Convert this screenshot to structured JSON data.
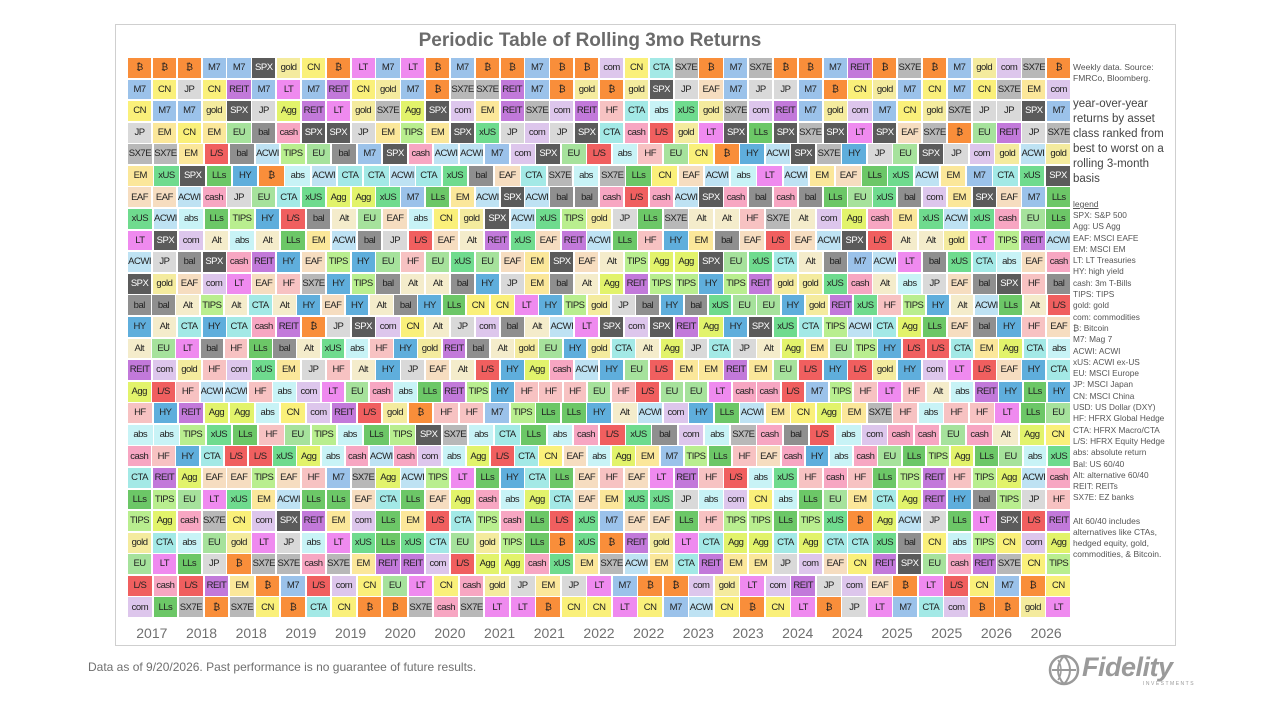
{
  "chart_data": {
    "type": "table",
    "title": "Periodic Table of Rolling 3mo Returns",
    "x_tick_labels": [
      "2017",
      "2018",
      "2018",
      "2019",
      "2019",
      "2020",
      "2020",
      "2021",
      "2021",
      "2022",
      "2022",
      "2023",
      "2023",
      "2024",
      "2024",
      "2025",
      "2025",
      "2026",
      "2026"
    ],
    "row_order": "best to worst",
    "rows": [
      [
        "₿",
        "₿",
        "₿",
        "M7",
        "M7",
        "SPX",
        "gold",
        "CN",
        "₿",
        "LT",
        "M7",
        "LT",
        "₿",
        "M7",
        "₿",
        "₿",
        "M7",
        "₿",
        "₿",
        "com",
        "CN",
        "CTA",
        "SX7E",
        "₿",
        "M7",
        "SX7E",
        "₿",
        "₿",
        "M7",
        "REIT",
        "₿",
        "SX7E",
        "₿",
        "M7",
        "gold",
        "com",
        "SX7E",
        "₿"
      ],
      [
        "M7",
        "CN",
        "JP",
        "CN",
        "REIT",
        "M7",
        "LT",
        "M7",
        "REIT",
        "CN",
        "gold",
        "M7",
        "₿",
        "SX7E",
        "SX7E",
        "REIT",
        "M7",
        "₿",
        "gold",
        "₿",
        "gold",
        "SPX",
        "JP",
        "EAF",
        "M7",
        "JP",
        "JP",
        "M7",
        "₿",
        "CN",
        "gold",
        "M7",
        "CN",
        "M7",
        "CN",
        "SX7E",
        "EM",
        "com"
      ],
      [
        "CN",
        "M7",
        "M7",
        "gold",
        "SPX",
        "JP",
        "Agg",
        "REIT",
        "LT",
        "gold",
        "SX7E",
        "Agg",
        "SPX",
        "com",
        "EM",
        "REIT",
        "SX7E",
        "com",
        "REIT",
        "HF",
        "CTA",
        "abs",
        "xUS",
        "gold",
        "SX7E",
        "com",
        "REIT",
        "M7",
        "gold",
        "com",
        "M7",
        "CN",
        "gold",
        "SX7E",
        "JP",
        "JP",
        "SPX",
        "M7"
      ],
      [
        "JP",
        "EM",
        "CN",
        "EM",
        "EU",
        "bal",
        "cash",
        "SPX",
        "SPX",
        "JP",
        "EM",
        "TIPS",
        "EM",
        "SPX",
        "xUS",
        "JP",
        "com",
        "JP",
        "SPX",
        "CTA",
        "cash",
        "L/S",
        "gold",
        "LT",
        "SPX",
        "LLs",
        "SPX",
        "SX7E",
        "SPX",
        "LT",
        "SPX",
        "EAF",
        "SX7E",
        "₿",
        "EU",
        "REIT",
        "JP",
        "SX7E"
      ],
      [
        "SX7E",
        "SX7E",
        "EM",
        "L/S",
        "bal",
        "ACWI",
        "TIPS",
        "EU",
        "bal",
        "M7",
        "SPX",
        "cash",
        "ACWI",
        "ACWI",
        "M7",
        "com",
        "SPX",
        "EU",
        "L/S",
        "abs",
        "HF",
        "EU",
        "CN",
        "₿",
        "HY",
        "ACWI",
        "SPX",
        "SX7E",
        "HY",
        "JP",
        "EU",
        "SPX",
        "JP",
        "com",
        "gold",
        "ACWI",
        "gold"
      ],
      [
        "EM",
        "xUS",
        "SPX",
        "LLs",
        "HY",
        "₿",
        "abs",
        "ACWI",
        "CTA",
        "CTA",
        "ACWI",
        "CTA",
        "xUS",
        "bal",
        "EAF",
        "CTA",
        "SX7E",
        "abs",
        "SX7E",
        "LLs",
        "CN",
        "EAF",
        "ACWI",
        "abs",
        "LT",
        "ACWI",
        "EM",
        "EAF",
        "LLs",
        "xUS",
        "ACWI",
        "EM",
        "M7",
        "CTA",
        "xUS",
        "SPX"
      ],
      [
        "EAF",
        "EAF",
        "ACWI",
        "cash",
        "JP",
        "EU",
        "CTA",
        "xUS",
        "Agg",
        "Agg",
        "xUS",
        "M7",
        "LLs",
        "EM",
        "ACWI",
        "SPX",
        "ACWI",
        "bal",
        "bal",
        "cash",
        "L/S",
        "cash",
        "ACWI",
        "SPX",
        "cash",
        "bal",
        "cash",
        "bal",
        "LLs",
        "EU",
        "xUS",
        "bal",
        "com",
        "EM",
        "SPX",
        "EAF",
        "M7",
        "LLs"
      ],
      [
        "xUS",
        "ACWI",
        "abs",
        "LLs",
        "TIPS",
        "HY",
        "L/S",
        "bal",
        "Alt",
        "EU",
        "EAF",
        "abs",
        "CN",
        "gold",
        "SPX",
        "ACWI",
        "xUS",
        "TIPS",
        "gold",
        "JP",
        "LLs",
        "SX7E",
        "Alt",
        "Alt",
        "HF",
        "SX7E",
        "Alt",
        "com",
        "Agg",
        "cash",
        "EM",
        "xUS",
        "ACWI",
        "xUS",
        "cash",
        "EU",
        "LLs"
      ],
      [
        "LT",
        "SPX",
        "com",
        "Alt",
        "abs",
        "Alt",
        "LLs",
        "EM",
        "ACWI",
        "bal",
        "JP",
        "L/S",
        "EAF",
        "Alt",
        "REIT",
        "xUS",
        "EAF",
        "REIT",
        "ACWI",
        "LLs",
        "HF",
        "HY",
        "EM",
        "bal",
        "EAF",
        "L/S",
        "EAF",
        "ACWI",
        "SPX",
        "L/S",
        "Alt",
        "Alt",
        "gold",
        "LT",
        "TIPS",
        "REIT",
        "ACWI"
      ],
      [
        "ACWI",
        "JP",
        "bal",
        "SPX",
        "cash",
        "REIT",
        "HY",
        "EAF",
        "TIPS",
        "HY",
        "EU",
        "HF",
        "EU",
        "xUS",
        "EU",
        "EAF",
        "EM",
        "SPX",
        "EAF",
        "Alt",
        "TIPS",
        "Agg",
        "Agg",
        "SPX",
        "EU",
        "xUS",
        "CTA",
        "Alt",
        "bal",
        "M7",
        "ACWI",
        "LT",
        "bal",
        "xUS",
        "CTA",
        "abs",
        "EAF",
        "cash"
      ],
      [
        "SPX",
        "gold",
        "EAF",
        "com",
        "LT",
        "EAF",
        "HF",
        "SX7E",
        "HY",
        "TIPS",
        "bal",
        "Alt",
        "Alt",
        "bal",
        "HY",
        "JP",
        "EM",
        "bal",
        "Alt",
        "Agg",
        "REIT",
        "TIPS",
        "TIPS",
        "HY",
        "TIPS",
        "REIT",
        "gold",
        "gold",
        "xUS",
        "cash",
        "Alt",
        "abs",
        "JP",
        "EAF",
        "bal",
        "SPX",
        "HF",
        "bal"
      ],
      [
        "bal",
        "bal",
        "Alt",
        "TIPS",
        "Alt",
        "CTA",
        "Alt",
        "HY",
        "EAF",
        "HY",
        "Alt",
        "bal",
        "HY",
        "LLs",
        "CN",
        "CN",
        "LT",
        "HY",
        "TIPS",
        "gold",
        "JP",
        "bal",
        "HY",
        "bal",
        "xUS",
        "EU",
        "EU",
        "HY",
        "gold",
        "REIT",
        "xUS",
        "HF",
        "TIPS",
        "HY",
        "Alt",
        "ACWI",
        "LLs",
        "Alt",
        "L/S"
      ],
      [
        "HY",
        "Alt",
        "CTA",
        "HY",
        "CTA",
        "cash",
        "REIT",
        "₿",
        "JP",
        "SPX",
        "com",
        "CN",
        "Alt",
        "JP",
        "com",
        "bal",
        "Alt",
        "ACWI",
        "LT",
        "SPX",
        "com",
        "SPX",
        "REIT",
        "Agg",
        "HY",
        "SPX",
        "xUS",
        "CTA",
        "TIPS",
        "ACWI",
        "CTA",
        "Agg",
        "LLs",
        "EAF",
        "bal",
        "HY",
        "HF",
        "EAF"
      ],
      [
        "Alt",
        "EU",
        "LT",
        "bal",
        "HF",
        "LLs",
        "bal",
        "Alt",
        "xUS",
        "abs",
        "HF",
        "HY",
        "gold",
        "REIT",
        "bal",
        "Alt",
        "gold",
        "EU",
        "HY",
        "gold",
        "CTA",
        "Alt",
        "Agg",
        "JP",
        "CTA",
        "JP",
        "Alt",
        "Agg",
        "EM",
        "EU",
        "TIPS",
        "HY",
        "L/S",
        "L/S",
        "CTA",
        "EM",
        "Agg",
        "CTA",
        "abs"
      ],
      [
        "REIT",
        "com",
        "gold",
        "HF",
        "com",
        "xUS",
        "EM",
        "JP",
        "HF",
        "Alt",
        "HY",
        "JP",
        "EAF",
        "Alt",
        "L/S",
        "HY",
        "Agg",
        "cash",
        "ACWI",
        "HY",
        "EU",
        "L/S",
        "EM",
        "EM",
        "REIT",
        "EM",
        "EU",
        "L/S",
        "HY",
        "L/S",
        "gold",
        "HY",
        "com",
        "LT",
        "L/S",
        "EAF",
        "HY",
        "CTA"
      ],
      [
        "Agg",
        "L/S",
        "HF",
        "ACWI",
        "ACWI",
        "HF",
        "abs",
        "com",
        "LT",
        "EU",
        "cash",
        "abs",
        "LLs",
        "REIT",
        "TIPS",
        "HY",
        "HF",
        "HF",
        "HF",
        "EU",
        "HF",
        "L/S",
        "EU",
        "EU",
        "LT",
        "cash",
        "cash",
        "L/S",
        "M7",
        "TIPS",
        "HF",
        "LT",
        "HF",
        "Alt",
        "abs",
        "REIT",
        "HY",
        "LLs",
        "HY"
      ],
      [
        "HF",
        "HY",
        "REIT",
        "Agg",
        "Agg",
        "abs",
        "CN",
        "com",
        "REIT",
        "L/S",
        "gold",
        "₿",
        "HF",
        "HF",
        "M7",
        "TIPS",
        "LLs",
        "LLs",
        "HY",
        "Alt",
        "ACWI",
        "com",
        "HY",
        "LLs",
        "ACWI",
        "EM",
        "CN",
        "Agg",
        "EM",
        "SX7E",
        "HF",
        "abs",
        "HF",
        "HF",
        "LT",
        "LLs",
        "EU"
      ],
      [
        "abs",
        "abs",
        "TIPS",
        "xUS",
        "LLs",
        "HF",
        "EU",
        "TIPS",
        "abs",
        "LLs",
        "TIPS",
        "SPX",
        "SX7E",
        "abs",
        "CTA",
        "LLs",
        "abs",
        "cash",
        "L/S",
        "xUS",
        "bal",
        "com",
        "abs",
        "SX7E",
        "cash",
        "bal",
        "L/S",
        "abs",
        "com",
        "cash",
        "cash",
        "EU",
        "cash",
        "Alt",
        "Agg",
        "CN"
      ],
      [
        "cash",
        "HF",
        "HY",
        "CTA",
        "L/S",
        "L/S",
        "xUS",
        "Agg",
        "abs",
        "cash",
        "ACWI",
        "cash",
        "com",
        "abs",
        "Agg",
        "L/S",
        "CTA",
        "CN",
        "EAF",
        "abs",
        "Agg",
        "EM",
        "M7",
        "TIPS",
        "LLs",
        "HF",
        "EAF",
        "cash",
        "HY",
        "abs",
        "cash",
        "EU",
        "LLs",
        "TIPS",
        "Agg",
        "LLs",
        "EU",
        "abs",
        "xUS"
      ],
      [
        "CTA",
        "REIT",
        "Agg",
        "EAF",
        "EAF",
        "TIPS",
        "EAF",
        "HF",
        "M7",
        "SX7E",
        "Agg",
        "ACWI",
        "TIPS",
        "LT",
        "LLs",
        "HY",
        "CTA",
        "LLs",
        "EAF",
        "HF",
        "EAF",
        "LT",
        "REIT",
        "HF",
        "L/S",
        "abs",
        "xUS",
        "HF",
        "cash",
        "HF",
        "LLs",
        "TIPS",
        "REIT",
        "HF",
        "TIPS",
        "Agg",
        "ACWI",
        "cash"
      ],
      [
        "LLs",
        "TIPS",
        "EU",
        "LT",
        "xUS",
        "EM",
        "ACWI",
        "LLs",
        "LLs",
        "EAF",
        "CTA",
        "LLs",
        "EAF",
        "Agg",
        "cash",
        "abs",
        "Agg",
        "CTA",
        "EAF",
        "EM",
        "xUS",
        "xUS",
        "JP",
        "abs",
        "com",
        "CN",
        "abs",
        "LLs",
        "EU",
        "EM",
        "CTA",
        "Agg",
        "REIT",
        "HY",
        "bal",
        "TIPS",
        "JP",
        "HF"
      ],
      [
        "TIPS",
        "Agg",
        "cash",
        "SX7E",
        "CN",
        "com",
        "SPX",
        "REIT",
        "EM",
        "com",
        "LLs",
        "EM",
        "L/S",
        "CTA",
        "TIPS",
        "cash",
        "LLs",
        "L/S",
        "xUS",
        "M7",
        "EAF",
        "EAF",
        "LLs",
        "HF",
        "TIPS",
        "TIPS",
        "LLs",
        "TIPS",
        "xUS",
        "₿",
        "Agg",
        "ACWI",
        "JP",
        "LLs",
        "LT",
        "SPX",
        "L/S",
        "REIT"
      ],
      [
        "gold",
        "CTA",
        "abs",
        "EU",
        "gold",
        "LT",
        "JP",
        "abs",
        "LT",
        "xUS",
        "LLs",
        "xUS",
        "CTA",
        "EU",
        "gold",
        "TIPS",
        "LLs",
        "₿",
        "xUS",
        "₿",
        "REIT",
        "gold",
        "LT",
        "CTA",
        "Agg",
        "Agg",
        "CTA",
        "Agg",
        "CTA",
        "CTA",
        "xUS",
        "bal",
        "CN",
        "abs",
        "TIPS",
        "CN",
        "com",
        "Agg"
      ],
      [
        "EU",
        "LT",
        "LLs",
        "JP",
        "₿",
        "SX7E",
        "SX7E",
        "cash",
        "SX7E",
        "EM",
        "REIT",
        "REIT",
        "com",
        "L/S",
        "Agg",
        "Agg",
        "cash",
        "xUS",
        "EM",
        "SX7E",
        "ACWI",
        "EM",
        "CTA",
        "REIT",
        "EM",
        "EM",
        "JP",
        "com",
        "EAF",
        "CN",
        "REIT",
        "SPX",
        "EU",
        "cash",
        "REIT",
        "SX7E",
        "CN",
        "TIPS"
      ],
      [
        "L/S",
        "cash",
        "L/S",
        "REIT",
        "EM",
        "₿",
        "M7",
        "L/S",
        "com",
        "CN",
        "EU",
        "LT",
        "CN",
        "cash",
        "gold",
        "JP",
        "EM",
        "JP",
        "LT",
        "M7",
        "₿",
        "₿",
        "com",
        "gold",
        "LT",
        "com",
        "REIT",
        "JP",
        "com",
        "EAF",
        "₿",
        "LT",
        "L/S",
        "CN",
        "M7",
        "₿",
        "CN"
      ],
      [
        "com",
        "LLs",
        "SX7E",
        "₿",
        "SX7E",
        "CN",
        "₿",
        "CTA",
        "CN",
        "₿",
        "₿",
        "SX7E",
        "cash",
        "SX7E",
        "LT",
        "LT",
        "₿",
        "CN",
        "CN",
        "LT",
        "CN",
        "M7",
        "ACWI",
        "CN",
        "₿",
        "CN",
        "LT",
        "₿",
        "JP",
        "LT",
        "M7",
        "CTA",
        "com",
        "₿",
        "₿",
        "gold",
        "LT"
      ]
    ],
    "colors": {
      "₿": "#F98E3A",
      "M7": "#9BC2EA",
      "CN": "#FAF07A",
      "JP": "#D9D9D9",
      "SX7E": "#B8B8B8",
      "EM": "#FBE79A",
      "EAF": "#F6DDC0",
      "xUS": "#6FDB8E",
      "LT": "#EF8AEF",
      "ACWI": "#BEE2F3",
      "SPX": "#5B5B5B",
      "bal": "#8F8F8F",
      "HY": "#5FAEDC",
      "Alt": "#F4ECCB",
      "REIT": "#C279DA",
      "abs": "#C8F3F6",
      "HF": "#F7C2C2",
      "Agg": "#E2F36B",
      "cash": "#F7A6C2",
      "CTA": "#A3E9E6",
      "TIPS": "#B9EE8F",
      "L/S": "#F05F5F",
      "EU": "#A6E29C",
      "gold": "#F4EB9E",
      "com": "#DDC6EC",
      "LLs": "#6CC767"
    },
    "dark_text_labels": [
      "SPX"
    ]
  },
  "sidebar": {
    "source": "Weekly data.  Source: FMRCo, Bloomberg.",
    "description": "year-over-year returns by asset class ranked from best to worst on a rolling 3-month basis",
    "legend_title": "legend",
    "legend": [
      "SPX: S&P 500",
      "Agg: US Agg",
      "EAF: MSCI EAFE",
      "EM: MSCI EM",
      "LT: LT Treasuries",
      "HY: high yield",
      "cash: 3m T-Bills",
      "TIPS:  TIPS",
      "gold: gold",
      "com: commodities",
      "₿: Bitcoin",
      "M7: Mag 7",
      "ACWI: ACWI",
      "xUS: ACWI ex-US",
      "EU: MSCI Europe",
      "JP: MSCI Japan",
      "CN: MSCI China",
      "USD: US Dollar (DXY)",
      "HF: HFRX Global Hedge",
      "CTA: HFRX Macro/CTA",
      "L/S: HFRX Equity Hedge",
      "abs: absolute return",
      "Bal: US 60/40",
      "Alt: alternative 60/40",
      "REIT: REITs",
      "SX7E: EZ banks"
    ],
    "note": "Alt 60/40 includes alternatives like CTAs, hedged equity, gold, commodities, & Bitcoin."
  },
  "footnote": "Data as of 9/20/2026. Past performance is no guarantee of future results.",
  "logo": {
    "text": "Fidelity",
    "sub": "INVESTMENTS"
  }
}
